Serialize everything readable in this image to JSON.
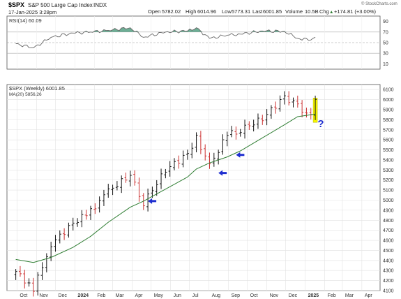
{
  "header": {
    "symbol": "$SPX",
    "name": "S&P 500 Large Cap Index",
    "exchange": "INDX",
    "date": "17-Jan-2025 3:28pm",
    "open_label": "Open",
    "open": "5782.02",
    "high_label": "High",
    "high": "6014.96",
    "low_label": "Low",
    "low": "5773.31",
    "last_label": "Last",
    "last": "6001.85",
    "volume_label": "Volume",
    "volume": "10.5B",
    "chg_label": "Chg",
    "chg": "+174.81 (+3.00%)",
    "chg_arrow": "▲",
    "watermark": "© StockCharts.com"
  },
  "rsi_panel": {
    "legend": "RSI(14) 60.09",
    "ticks": [
      "90",
      "70",
      "50",
      "30",
      "10"
    ]
  },
  "price_panel": {
    "legend_main": "$SPX (Weekly) 6001.85",
    "legend_ma": "MA(20) 5856.26",
    "question_mark": "?"
  },
  "colors": {
    "up_bar": "#111111",
    "down_bar": "#cc3333",
    "ma_line": "#2e7d32",
    "rsi_line": "#666666",
    "rsi_fill": "#4a9a7a",
    "arrow": "#1f2fd0",
    "highlight": "#f5f500",
    "grid": "#e2e2e2"
  },
  "chart_data": [
    {
      "type": "line",
      "title": "RSI(14)",
      "ylim": [
        0,
        100
      ],
      "yticks": [
        90,
        70,
        50,
        30,
        10
      ],
      "reference_lines": [
        70,
        50,
        30
      ],
      "series": [
        {
          "name": "RSI(14)",
          "x": [
            "2023-09-29",
            "2023-10-27",
            "2023-11-24",
            "2023-12-29",
            "2024-01-26",
            "2024-02-23",
            "2024-03-29",
            "2024-04-19",
            "2024-05-24",
            "2024-06-28",
            "2024-07-12",
            "2024-08-02",
            "2024-08-30",
            "2024-09-20",
            "2024-10-25",
            "2024-11-29",
            "2024-12-20",
            "2025-01-10",
            "2025-01-17"
          ],
          "values": [
            48,
            40,
            60,
            68,
            70,
            73,
            78,
            60,
            70,
            72,
            78,
            58,
            64,
            66,
            72,
            71,
            58,
            55,
            60.09
          ]
        }
      ]
    },
    {
      "type": "ohlc",
      "title": "$SPX (Weekly)",
      "ylim": [
        4100,
        6150
      ],
      "yticks": [
        6100,
        6000,
        5900,
        5800,
        5700,
        5600,
        5500,
        5400,
        5300,
        5200,
        5100,
        5000,
        4900,
        4800,
        4700,
        4600,
        4500,
        4400,
        4300,
        4200,
        4100
      ],
      "xticks": [
        "Oct",
        "Nov",
        "Dec",
        "2024",
        "Feb",
        "Mar",
        "Apr",
        "May",
        "Jun",
        "Jul",
        "Aug",
        "Sep",
        "Oct",
        "Nov",
        "Dec",
        "2025",
        "Feb",
        "Mar",
        "Apr"
      ],
      "x": [
        "2023-09-29",
        "2023-10-27",
        "2023-11-24",
        "2023-12-29",
        "2024-01-26",
        "2024-02-23",
        "2024-03-29",
        "2024-04-19",
        "2024-05-24",
        "2024-06-28",
        "2024-07-12",
        "2024-08-02",
        "2024-08-30",
        "2024-09-20",
        "2024-10-25",
        "2024-11-29",
        "2024-12-20",
        "2025-01-10",
        "2025-01-17"
      ],
      "close": [
        4290,
        4117,
        4560,
        4770,
        4890,
        5090,
        5250,
        4970,
        5300,
        5460,
        5620,
        5340,
        5650,
        5700,
        5810,
        6030,
        5930,
        5830,
        6001.85
      ],
      "series": [
        {
          "name": "MA(20)",
          "x": [
            "2023-09-29",
            "2023-10-27",
            "2023-11-24",
            "2023-12-29",
            "2024-01-26",
            "2024-02-23",
            "2024-03-29",
            "2024-04-19",
            "2024-05-24",
            "2024-06-28",
            "2024-07-12",
            "2024-08-02",
            "2024-08-30",
            "2024-09-20",
            "2024-10-25",
            "2024-11-29",
            "2024-12-20",
            "2025-01-10",
            "2025-01-17"
          ],
          "values": [
            4410,
            4380,
            4430,
            4530,
            4640,
            4780,
            4930,
            4990,
            5110,
            5230,
            5310,
            5370,
            5430,
            5490,
            5620,
            5750,
            5830,
            5850,
            5856.26
          ]
        }
      ],
      "annotations": [
        {
          "type": "arrow",
          "x": "2024-04-26",
          "y": 4990
        },
        {
          "type": "arrow",
          "x": "2024-08-16",
          "y": 5270
        },
        {
          "type": "arrow",
          "x": "2024-09-13",
          "y": 5450
        },
        {
          "type": "highlight",
          "x": "2025-01-17",
          "y": [
            5773.31,
            6014.96
          ]
        },
        {
          "type": "text",
          "x": "2025-01-24",
          "y": 5760,
          "text": "?"
        }
      ]
    }
  ]
}
